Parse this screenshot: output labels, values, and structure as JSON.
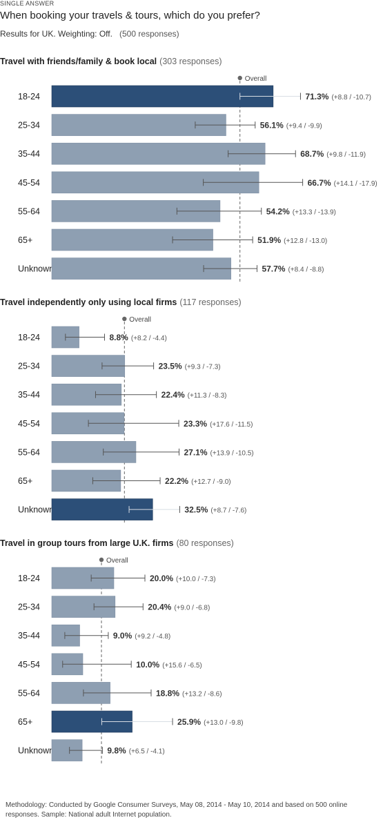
{
  "header": {
    "type_label": "SINGLE ANSWER",
    "question": "When booking your travels & tours, which do you prefer?",
    "results_for": "Results for UK. Weighting: Off.",
    "responses": "(500 responses)"
  },
  "overall_label": "Overall",
  "colors": {
    "bar": "#8e9fb2",
    "bar_highlight": "#2c4f78",
    "text": "#333333",
    "error_bar": "#555555",
    "overall_line": "#666666"
  },
  "chart_data": [
    {
      "type": "bar",
      "title": "Travel with friends/family & book local",
      "responses": "(303 responses)",
      "orientation": "horizontal",
      "categories": [
        "18-24",
        "25-34",
        "35-44",
        "45-54",
        "55-64",
        "65+",
        "Unknown"
      ],
      "values": [
        71.3,
        56.1,
        68.7,
        66.7,
        54.2,
        51.9,
        57.7
      ],
      "value_labels": [
        "71.3%",
        "56.1%",
        "68.7%",
        "66.7%",
        "54.2%",
        "51.9%",
        "57.7%"
      ],
      "error_labels": [
        "(+8.8 / -10.7)",
        "(+9.4 / -9.9)",
        "(+9.8 / -11.9)",
        "(+14.1 / -17.9)",
        "(+13.3 / -13.9)",
        "(+12.8 / -13.0)",
        "(+8.4 / -8.8)"
      ],
      "error_plus": [
        8.8,
        9.4,
        9.8,
        14.1,
        13.3,
        12.8,
        8.4
      ],
      "error_minus": [
        10.7,
        9.9,
        11.9,
        17.9,
        13.9,
        13.0,
        8.8
      ],
      "highlight_index": 0,
      "overall": 60.6
    },
    {
      "type": "bar",
      "title": "Travel independently only using local firms",
      "responses": "(117 responses)",
      "orientation": "horizontal",
      "categories": [
        "18-24",
        "25-34",
        "35-44",
        "45-54",
        "55-64",
        "65+",
        "Unknown"
      ],
      "values": [
        8.8,
        23.5,
        22.4,
        23.3,
        27.1,
        22.2,
        32.5
      ],
      "value_labels": [
        "8.8%",
        "23.5%",
        "22.4%",
        "23.3%",
        "27.1%",
        "22.2%",
        "32.5%"
      ],
      "error_labels": [
        "(+8.2 / -4.4)",
        "(+9.3 / -7.3)",
        "(+11.3 / -8.3)",
        "(+17.6 / -11.5)",
        "(+13.9 / -10.5)",
        "(+12.7 / -9.0)",
        "(+8.7 / -7.6)"
      ],
      "error_plus": [
        8.2,
        9.3,
        11.3,
        17.6,
        13.9,
        12.7,
        8.7
      ],
      "error_minus": [
        4.4,
        7.3,
        8.3,
        11.5,
        10.5,
        9.0,
        7.6
      ],
      "highlight_index": 6,
      "overall": 23.4
    },
    {
      "type": "bar",
      "title": "Travel in group tours from large U.K. firms",
      "responses": "(80 responses)",
      "orientation": "horizontal",
      "categories": [
        "18-24",
        "25-34",
        "35-44",
        "45-54",
        "55-64",
        "65+",
        "Unknown"
      ],
      "values": [
        20.0,
        20.4,
        9.0,
        10.0,
        18.8,
        25.9,
        9.8
      ],
      "value_labels": [
        "20.0%",
        "20.4%",
        "9.0%",
        "10.0%",
        "18.8%",
        "25.9%",
        "9.8%"
      ],
      "error_labels": [
        "(+10.0 / -7.3)",
        "(+9.0 / -6.8)",
        "(+9.2 / -4.8)",
        "(+15.6 / -6.5)",
        "(+13.2 / -8.6)",
        "(+13.0 / -9.8)",
        "(+6.5 / -4.1)"
      ],
      "error_plus": [
        10.0,
        9.0,
        9.2,
        15.6,
        13.2,
        13.0,
        6.5
      ],
      "error_minus": [
        7.3,
        6.8,
        4.8,
        6.5,
        8.6,
        9.8,
        4.1
      ],
      "highlight_index": 5,
      "overall": 16.0
    }
  ],
  "footer": {
    "methodology": "Methodology: Conducted by Google Consumer Surveys, May 08, 2014 - May 10, 2014 and based on 500 online responses. Sample: National adult Internet population."
  }
}
